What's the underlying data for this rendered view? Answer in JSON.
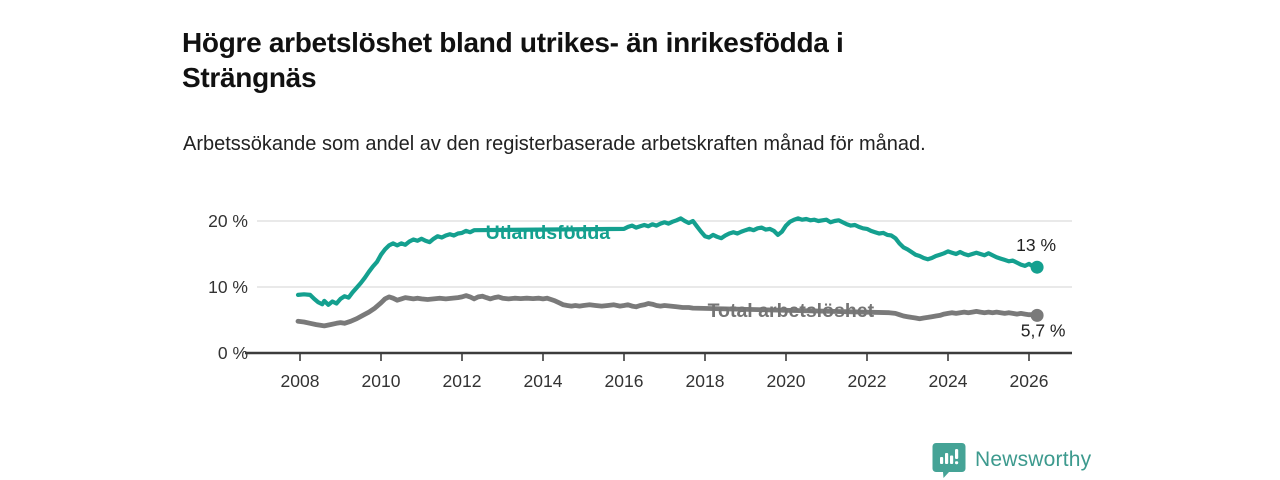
{
  "header": {
    "title": "Högre arbetslöshet bland utrikes- än inrikesfödda i Strängnäs",
    "subtitle": "Arbetssökande som andel av den registerbaserade arbetskraften månad för månad."
  },
  "footer": {
    "brand": "Newsworthy",
    "brand_color": "#3d9a8e",
    "logo_icon": "newsworthy-bar-chart-speech-bubble",
    "logo_color": "#45a396"
  },
  "colors": {
    "teal_line": "#14a08f",
    "gray_line": "#7a7a7a",
    "gray_label": "#757575",
    "axis": "#3c3c3c",
    "tick_text": "#333333",
    "grid": "#dcdcdc",
    "annotation_text": "#222222"
  },
  "chart_data": {
    "type": "line",
    "title": "Högre arbetslöshet bland utrikes- än inrikesfödda i Strängnäs",
    "subtitle": "Arbetssökande som andel av den registerbaserade arbetskraften månad för månad.",
    "unit": "%",
    "grid": "horizontal",
    "legend": "inline-labels",
    "x_axis": {
      "range": [
        2007.6,
        2026.6
      ],
      "ticks": [
        {
          "value": 2008,
          "label": "2008"
        },
        {
          "value": 2010,
          "label": "2010"
        },
        {
          "value": 2012,
          "label": "2012"
        },
        {
          "value": 2014,
          "label": "2014"
        },
        {
          "value": 2016,
          "label": "2016"
        },
        {
          "value": 2018,
          "label": "2018"
        },
        {
          "value": 2020,
          "label": "2020"
        },
        {
          "value": 2022,
          "label": "2022"
        },
        {
          "value": 2024,
          "label": "2024"
        },
        {
          "value": 2026,
          "label": "2026"
        }
      ]
    },
    "y_axis": {
      "range": [
        0,
        22
      ],
      "ticks": [
        {
          "value": 0,
          "label": "0 %"
        },
        {
          "value": 10,
          "label": "10 %"
        },
        {
          "value": 20,
          "label": "20 %"
        }
      ]
    },
    "series": [
      {
        "name": "Utlandsfödda",
        "color": "#14a08f",
        "label_color": "#14a08f",
        "line_width": 4.2,
        "label_anchor": {
          "x": 2014.12,
          "y": 18.3
        },
        "label_gap": [
          2012.32,
          2015.97
        ],
        "end_dot": true,
        "end_label": {
          "text": "13 %",
          "dx": -1,
          "dy": -16
        },
        "points": [
          [
            2007.95,
            8.8
          ],
          [
            2008.1,
            8.9
          ],
          [
            2008.25,
            8.8
          ],
          [
            2008.35,
            8.2
          ],
          [
            2008.45,
            7.7
          ],
          [
            2008.55,
            7.4
          ],
          [
            2008.6,
            7.9
          ],
          [
            2008.7,
            7.3
          ],
          [
            2008.8,
            7.8
          ],
          [
            2008.9,
            7.5
          ],
          [
            2009.0,
            8.2
          ],
          [
            2009.1,
            8.6
          ],
          [
            2009.2,
            8.4
          ],
          [
            2009.3,
            9.2
          ],
          [
            2009.4,
            9.9
          ],
          [
            2009.5,
            10.6
          ],
          [
            2009.6,
            11.4
          ],
          [
            2009.7,
            12.3
          ],
          [
            2009.8,
            13.1
          ],
          [
            2009.9,
            13.8
          ],
          [
            2010.0,
            14.9
          ],
          [
            2010.1,
            15.7
          ],
          [
            2010.2,
            16.3
          ],
          [
            2010.3,
            16.6
          ],
          [
            2010.4,
            16.3
          ],
          [
            2010.5,
            16.6
          ],
          [
            2010.6,
            16.4
          ],
          [
            2010.7,
            16.9
          ],
          [
            2010.8,
            17.2
          ],
          [
            2010.9,
            17.0
          ],
          [
            2011.0,
            17.3
          ],
          [
            2011.1,
            17.0
          ],
          [
            2011.2,
            16.8
          ],
          [
            2011.3,
            17.3
          ],
          [
            2011.4,
            17.7
          ],
          [
            2011.5,
            17.5
          ],
          [
            2011.6,
            17.8
          ],
          [
            2011.7,
            18.0
          ],
          [
            2011.8,
            17.8
          ],
          [
            2011.9,
            18.1
          ],
          [
            2012.0,
            18.2
          ],
          [
            2012.1,
            18.5
          ],
          [
            2012.2,
            18.3
          ],
          [
            2012.3,
            18.6
          ],
          [
            2016.0,
            18.8
          ],
          [
            2016.1,
            19.1
          ],
          [
            2016.2,
            19.3
          ],
          [
            2016.3,
            19.0
          ],
          [
            2016.4,
            19.2
          ],
          [
            2016.5,
            19.4
          ],
          [
            2016.6,
            19.2
          ],
          [
            2016.7,
            19.5
          ],
          [
            2016.8,
            19.3
          ],
          [
            2016.9,
            19.6
          ],
          [
            2017.0,
            19.8
          ],
          [
            2017.1,
            19.6
          ],
          [
            2017.2,
            19.9
          ],
          [
            2017.3,
            20.1
          ],
          [
            2017.4,
            20.4
          ],
          [
            2017.5,
            20.0
          ],
          [
            2017.6,
            19.7
          ],
          [
            2017.7,
            20.0
          ],
          [
            2017.8,
            19.2
          ],
          [
            2017.9,
            18.4
          ],
          [
            2018.0,
            17.7
          ],
          [
            2018.1,
            17.5
          ],
          [
            2018.2,
            17.9
          ],
          [
            2018.3,
            17.6
          ],
          [
            2018.4,
            17.4
          ],
          [
            2018.5,
            17.8
          ],
          [
            2018.6,
            18.1
          ],
          [
            2018.7,
            18.3
          ],
          [
            2018.8,
            18.1
          ],
          [
            2018.9,
            18.4
          ],
          [
            2019.0,
            18.6
          ],
          [
            2019.1,
            18.8
          ],
          [
            2019.2,
            18.6
          ],
          [
            2019.3,
            18.9
          ],
          [
            2019.4,
            19.0
          ],
          [
            2019.5,
            18.7
          ],
          [
            2019.6,
            18.8
          ],
          [
            2019.7,
            18.5
          ],
          [
            2019.8,
            17.9
          ],
          [
            2019.9,
            18.4
          ],
          [
            2020.0,
            19.3
          ],
          [
            2020.1,
            19.9
          ],
          [
            2020.2,
            20.2
          ],
          [
            2020.3,
            20.4
          ],
          [
            2020.4,
            20.2
          ],
          [
            2020.5,
            20.3
          ],
          [
            2020.6,
            20.1
          ],
          [
            2020.7,
            20.2
          ],
          [
            2020.8,
            20.0
          ],
          [
            2020.9,
            20.1
          ],
          [
            2021.0,
            20.2
          ],
          [
            2021.1,
            19.8
          ],
          [
            2021.2,
            20.0
          ],
          [
            2021.3,
            20.1
          ],
          [
            2021.4,
            19.8
          ],
          [
            2021.5,
            19.5
          ],
          [
            2021.6,
            19.3
          ],
          [
            2021.7,
            19.4
          ],
          [
            2021.8,
            19.1
          ],
          [
            2021.9,
            18.9
          ],
          [
            2022.0,
            18.8
          ],
          [
            2022.1,
            18.5
          ],
          [
            2022.2,
            18.3
          ],
          [
            2022.3,
            18.1
          ],
          [
            2022.4,
            18.2
          ],
          [
            2022.5,
            17.9
          ],
          [
            2022.6,
            17.8
          ],
          [
            2022.7,
            17.4
          ],
          [
            2022.8,
            16.6
          ],
          [
            2022.9,
            16.0
          ],
          [
            2023.0,
            15.7
          ],
          [
            2023.1,
            15.3
          ],
          [
            2023.2,
            14.9
          ],
          [
            2023.3,
            14.7
          ],
          [
            2023.4,
            14.4
          ],
          [
            2023.5,
            14.2
          ],
          [
            2023.6,
            14.4
          ],
          [
            2023.7,
            14.7
          ],
          [
            2023.8,
            14.9
          ],
          [
            2023.9,
            15.1
          ],
          [
            2024.0,
            15.4
          ],
          [
            2024.1,
            15.2
          ],
          [
            2024.2,
            15.0
          ],
          [
            2024.3,
            15.3
          ],
          [
            2024.4,
            15.0
          ],
          [
            2024.5,
            14.8
          ],
          [
            2024.6,
            15.0
          ],
          [
            2024.7,
            15.2
          ],
          [
            2024.8,
            15.0
          ],
          [
            2024.9,
            14.8
          ],
          [
            2025.0,
            15.1
          ],
          [
            2025.1,
            14.8
          ],
          [
            2025.2,
            14.5
          ],
          [
            2025.3,
            14.3
          ],
          [
            2025.4,
            14.1
          ],
          [
            2025.5,
            13.9
          ],
          [
            2025.6,
            14.0
          ],
          [
            2025.7,
            13.7
          ],
          [
            2025.8,
            13.4
          ],
          [
            2025.9,
            13.2
          ],
          [
            2026.0,
            13.5
          ],
          [
            2026.1,
            13.1
          ],
          [
            2026.2,
            13.0
          ]
        ]
      },
      {
        "name": "Total arbetslöshet",
        "color": "#7a7a7a",
        "label_color": "#757575",
        "line_width": 4.8,
        "label_anchor": {
          "x": 2020.12,
          "y": 6.5
        },
        "label_gap": [
          2017.72,
          2022.53
        ],
        "end_dot": true,
        "end_label": {
          "text": "5,7 %",
          "dx": 6,
          "dy": 21
        },
        "points": [
          [
            2007.95,
            4.8
          ],
          [
            2008.1,
            4.7
          ],
          [
            2008.25,
            4.5
          ],
          [
            2008.4,
            4.3
          ],
          [
            2008.5,
            4.2
          ],
          [
            2008.6,
            4.1
          ],
          [
            2008.75,
            4.3
          ],
          [
            2008.9,
            4.5
          ],
          [
            2009.0,
            4.6
          ],
          [
            2009.1,
            4.5
          ],
          [
            2009.25,
            4.8
          ],
          [
            2009.4,
            5.2
          ],
          [
            2009.55,
            5.7
          ],
          [
            2009.7,
            6.2
          ],
          [
            2009.85,
            6.8
          ],
          [
            2010.0,
            7.6
          ],
          [
            2010.1,
            8.2
          ],
          [
            2010.2,
            8.5
          ],
          [
            2010.3,
            8.3
          ],
          [
            2010.4,
            8.0
          ],
          [
            2010.5,
            8.2
          ],
          [
            2010.6,
            8.4
          ],
          [
            2010.7,
            8.3
          ],
          [
            2010.8,
            8.2
          ],
          [
            2010.9,
            8.3
          ],
          [
            2011.0,
            8.2
          ],
          [
            2011.15,
            8.1
          ],
          [
            2011.3,
            8.2
          ],
          [
            2011.45,
            8.3
          ],
          [
            2011.6,
            8.2
          ],
          [
            2011.75,
            8.3
          ],
          [
            2011.9,
            8.4
          ],
          [
            2012.0,
            8.5
          ],
          [
            2012.1,
            8.7
          ],
          [
            2012.2,
            8.5
          ],
          [
            2012.3,
            8.2
          ],
          [
            2012.4,
            8.5
          ],
          [
            2012.5,
            8.6
          ],
          [
            2012.6,
            8.4
          ],
          [
            2012.7,
            8.2
          ],
          [
            2012.8,
            8.4
          ],
          [
            2012.9,
            8.5
          ],
          [
            2013.0,
            8.3
          ],
          [
            2013.15,
            8.2
          ],
          [
            2013.3,
            8.3
          ],
          [
            2013.45,
            8.25
          ],
          [
            2013.6,
            8.3
          ],
          [
            2013.75,
            8.25
          ],
          [
            2013.9,
            8.3
          ],
          [
            2014.0,
            8.2
          ],
          [
            2014.1,
            8.3
          ],
          [
            2014.2,
            8.1
          ],
          [
            2014.3,
            7.9
          ],
          [
            2014.4,
            7.6
          ],
          [
            2014.5,
            7.3
          ],
          [
            2014.6,
            7.2
          ],
          [
            2014.7,
            7.1
          ],
          [
            2014.8,
            7.2
          ],
          [
            2014.9,
            7.1
          ],
          [
            2015.0,
            7.2
          ],
          [
            2015.15,
            7.3
          ],
          [
            2015.3,
            7.2
          ],
          [
            2015.45,
            7.1
          ],
          [
            2015.6,
            7.2
          ],
          [
            2015.75,
            7.3
          ],
          [
            2015.9,
            7.1
          ],
          [
            2016.0,
            7.2
          ],
          [
            2016.1,
            7.3
          ],
          [
            2016.2,
            7.1
          ],
          [
            2016.3,
            7.0
          ],
          [
            2016.4,
            7.2
          ],
          [
            2016.5,
            7.3
          ],
          [
            2016.6,
            7.5
          ],
          [
            2016.7,
            7.4
          ],
          [
            2016.8,
            7.2
          ],
          [
            2016.9,
            7.1
          ],
          [
            2017.0,
            7.2
          ],
          [
            2017.15,
            7.1
          ],
          [
            2017.3,
            7.0
          ],
          [
            2017.45,
            6.9
          ],
          [
            2017.6,
            6.9
          ],
          [
            2017.7,
            6.8
          ],
          [
            2022.55,
            6.1
          ],
          [
            2022.7,
            6.0
          ],
          [
            2022.8,
            5.8
          ],
          [
            2022.9,
            5.6
          ],
          [
            2023.0,
            5.5
          ],
          [
            2023.1,
            5.4
          ],
          [
            2023.2,
            5.3
          ],
          [
            2023.3,
            5.2
          ],
          [
            2023.4,
            5.3
          ],
          [
            2023.5,
            5.4
          ],
          [
            2023.6,
            5.5
          ],
          [
            2023.7,
            5.6
          ],
          [
            2023.8,
            5.7
          ],
          [
            2023.9,
            5.9
          ],
          [
            2024.0,
            6.0
          ],
          [
            2024.1,
            6.1
          ],
          [
            2024.2,
            6.0
          ],
          [
            2024.3,
            6.1
          ],
          [
            2024.4,
            6.2
          ],
          [
            2024.5,
            6.1
          ],
          [
            2024.6,
            6.2
          ],
          [
            2024.7,
            6.3
          ],
          [
            2024.8,
            6.2
          ],
          [
            2024.9,
            6.1
          ],
          [
            2025.0,
            6.2
          ],
          [
            2025.1,
            6.1
          ],
          [
            2025.2,
            6.2
          ],
          [
            2025.3,
            6.1
          ],
          [
            2025.4,
            6.0
          ],
          [
            2025.5,
            6.1
          ],
          [
            2025.6,
            6.0
          ],
          [
            2025.7,
            5.9
          ],
          [
            2025.8,
            6.0
          ],
          [
            2025.9,
            5.9
          ],
          [
            2026.0,
            5.8
          ],
          [
            2026.1,
            5.8
          ],
          [
            2026.2,
            5.7
          ]
        ]
      }
    ]
  }
}
